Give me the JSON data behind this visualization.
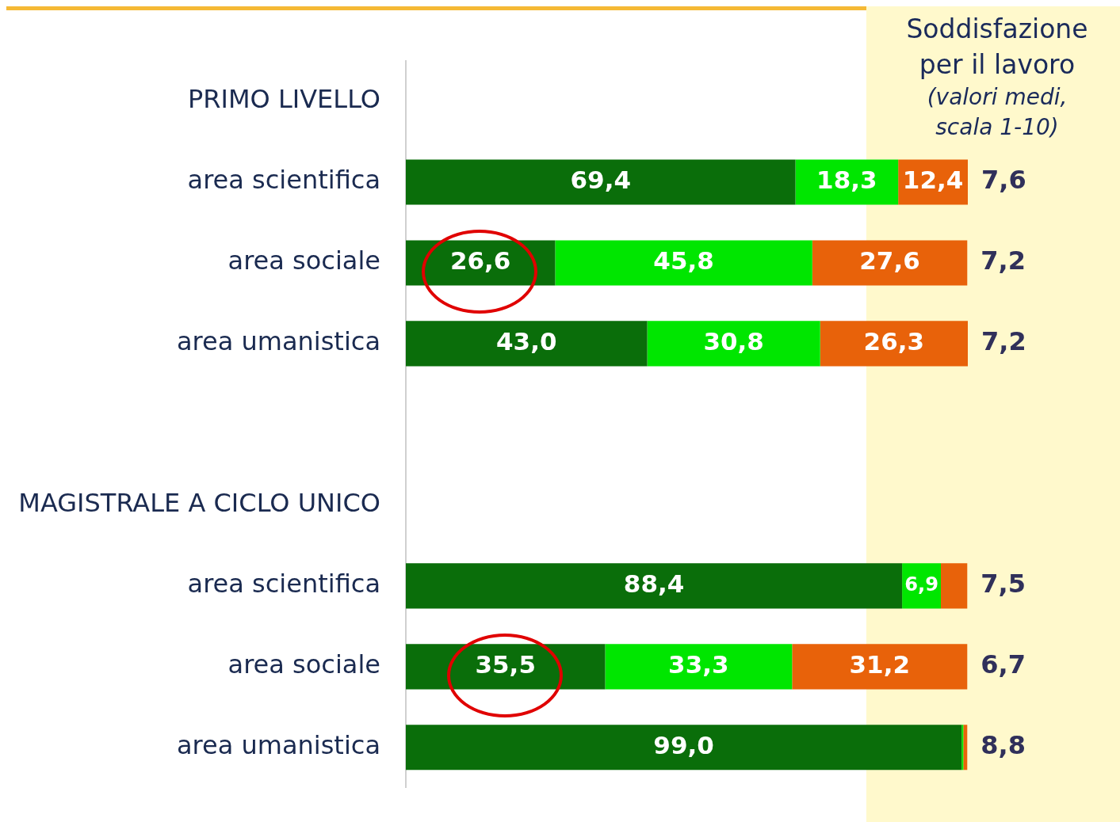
{
  "chart_data": {
    "type": "bar",
    "orientation": "horizontal",
    "stacked": true,
    "title": "Soddisfazione per il lavoro",
    "subtitle": "(valori medi, scala 1-10)",
    "categories": [
      "PRIMO LIVELLO",
      "area scientifica",
      "area sociale",
      "area umanistica",
      null,
      "MAGISTRALE A CICLO UNICO",
      "area scientifica",
      "area sociale",
      "area umanistica"
    ],
    "series": [
      {
        "color": "#0a6e0a",
        "values": [
          null,
          69.4,
          26.6,
          43.0,
          null,
          null,
          88.4,
          35.5,
          99.0
        ],
        "value_labels": [
          null,
          "69,4",
          "26,6",
          "43,0",
          null,
          null,
          "88,4",
          "35,5",
          "99,0"
        ]
      },
      {
        "color": "#00e600",
        "values": [
          null,
          18.3,
          45.8,
          30.8,
          null,
          null,
          6.9,
          33.3,
          0.3
        ],
        "value_labels": [
          null,
          "18,3",
          "45,8",
          "30,8",
          null,
          null,
          "6,9",
          "33,3",
          null
        ]
      },
      {
        "color": "#e8620a",
        "values": [
          null,
          12.4,
          27.6,
          26.3,
          null,
          null,
          4.7,
          31.2,
          0.7
        ],
        "value_labels": [
          null,
          "12,4",
          "27,6",
          "26,3",
          null,
          null,
          null,
          "31,2",
          null
        ]
      }
    ],
    "annotations": [
      "7,6",
      "7,2",
      "7,2",
      "7,5",
      "6,7",
      "8,8"
    ],
    "grid": false,
    "legend": false
  }
}
